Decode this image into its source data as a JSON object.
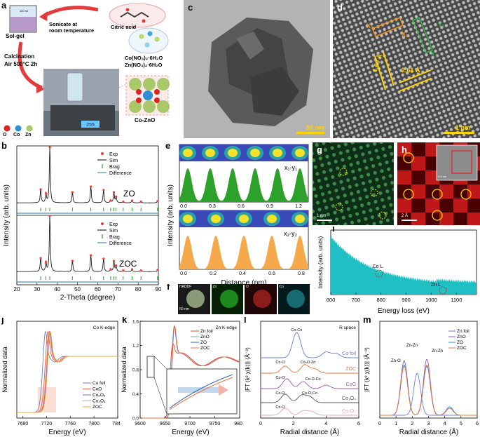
{
  "panel_letters": {
    "a": "a",
    "b": "b",
    "c": "c",
    "d": "d",
    "e": "e",
    "f": "f",
    "g": "g",
    "h": "h",
    "i": "i",
    "j": "j",
    "k": "k",
    "l": "l",
    "m": "m"
  },
  "colors": {
    "exp": "#e8403a",
    "sim": "#000000",
    "brag": "#2ca02c",
    "diff": "#1f77b4",
    "green_peak": "#2ea02c",
    "orange_peak": "#f5a94a",
    "cyan_fill": "#1fc0c4"
  },
  "panel_a": {
    "beaker_label": "Sol-gel",
    "beaker_volume": "100 ml",
    "sonicate": "Sonicate at",
    "room": "room temperature",
    "citric": "Citric acid",
    "co_salt": "Co(NO₃)₂·6H₂O",
    "zn_salt": "Zn(NO₃)₂·6H₂O",
    "calcination": "Calcination",
    "air": "Air 500°C 2h",
    "scale": "255",
    "product": "Co-ZnO",
    "legend": [
      "O",
      "Co",
      "Zn"
    ]
  },
  "panel_c": {
    "scale": "50 nm"
  },
  "panel_d": {
    "scale": "1 nm",
    "d1": "1.60 Å",
    "d2": "2.61 Å",
    "x1": "X₁",
    "x2": "X₂",
    "y1": "Y₁",
    "y2": "Y₂"
  },
  "panel_b": {
    "ylabel": "Intensity (arb. units)",
    "xlabel": "2-Theta (degree)",
    "xticks": [
      "20",
      "30",
      "40",
      "50",
      "60",
      "70",
      "80",
      "90"
    ],
    "legend": [
      "Exp",
      "Sim",
      "Brag",
      "Difference"
    ],
    "labels": [
      "ZO",
      "ZOC"
    ]
  },
  "panel_e": {
    "ylabel": "Intensity (arb. units)",
    "xlabel": "Distance (nm)",
    "top_label": "x₁-y₁",
    "bottom_label": "x₂-y₂",
    "top_ticks": [
      "0.0",
      "0.3",
      "0.6",
      "0.9",
      "1.2"
    ],
    "bottom_ticks": [
      "0.0",
      "0.2",
      "0.4",
      "0.6",
      "0.8"
    ]
  },
  "panel_f": {
    "labels": [
      "HADDF",
      "Zn",
      "O",
      "Co"
    ],
    "scale": "50 nm"
  },
  "panel_g": {
    "scale": "1 nm"
  },
  "panel_h": {
    "scale": "2 Å",
    "inset_scale": "0.5 nm"
  },
  "panel_i": {
    "ylabel": "Intensity (arb. units)",
    "xlabel": "Energy loss (eV)",
    "xticks": [
      "600",
      "700",
      "800",
      "900",
      "1000",
      "1100"
    ],
    "co_label": "Co L",
    "zn_label": "Zn L"
  },
  "panel_j": {
    "title": "Co K-edge",
    "ylabel": "Normalized data",
    "xlabel": "Energy (eV)",
    "xticks": [
      "7680",
      "7720",
      "7760",
      "7800",
      "7840"
    ],
    "legend": [
      "Co foil",
      "CoO",
      "Co₂O₃",
      "Co₃O₄",
      "ZOC"
    ]
  },
  "panel_k": {
    "title": "Zn K-edge",
    "ylabel": "Normalized data",
    "xlabel": "Energy (eV)",
    "xticks": [
      "9600",
      "9650",
      "9700",
      "9750",
      "9800"
    ],
    "yticks": [
      "0.0",
      "0.4",
      "0.8",
      "1.2",
      "1.6"
    ],
    "legend": [
      "Zn foil",
      "ZnO",
      "ZO",
      "ZOC"
    ]
  },
  "panel_l": {
    "title": "R space",
    "ylabel": "|FT (k² χ(k))| (Å⁻³)",
    "xlabel": "Radial distance (Å)",
    "xticks": [
      "0",
      "2",
      "4",
      "6"
    ],
    "curve_labels": [
      "Co foil",
      "ZOC",
      "CoO",
      "Co₃O₄",
      "Co₂O₃"
    ],
    "annotations": [
      "Co-Co",
      "Co-O",
      "Co-O-Zn",
      "Co-O",
      "Co-O-Co",
      "Co-O",
      "Co-O-Co",
      "Co-O"
    ]
  },
  "panel_m": {
    "ylabel": "|FT (k² χ(k))| (Å⁻³)",
    "xlabel": "Radial distance (Å)",
    "xticks": [
      "0",
      "1",
      "2",
      "3",
      "4",
      "5",
      "6"
    ],
    "legend": [
      "Zn foil",
      "ZnO",
      "ZO",
      "ZOC"
    ],
    "annotations": [
      "Zn-O",
      "Zn-Zn",
      "Zn-Zn"
    ]
  }
}
